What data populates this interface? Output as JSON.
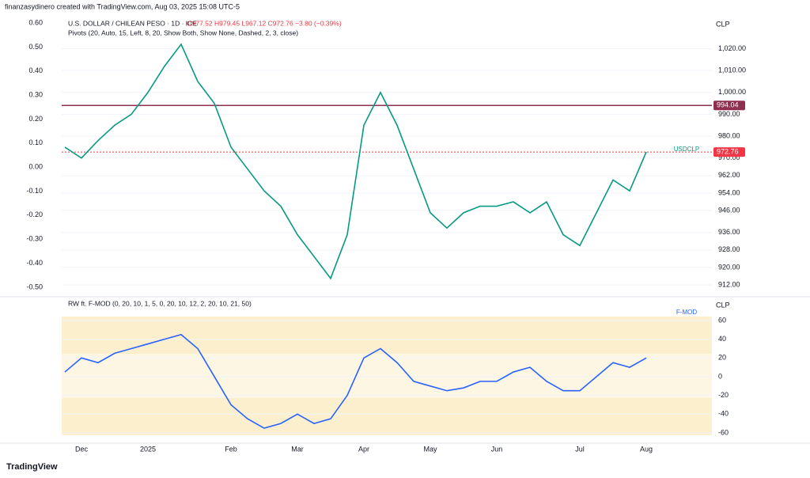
{
  "header": {
    "credit": "finanzasydinero created with TradingView.com, Aug 03, 2025 15:08 UTC-5",
    "footer": "TradingView"
  },
  "chart_data": [
    {
      "type": "line",
      "title": "U.S. DOLLAR / CHILEAN PESO · 1D · ICE",
      "subtitle": "O977.52 H979.45 L967.12 C972.76 −3.80 (−0.39%)",
      "annotation": "Pivots (20, Auto, 15, Left, 8, 20, Show Both, Show None, Dashed, 2, 3, close)",
      "currency": "CLP",
      "categories": [
        null,
        "Dec",
        null,
        null,
        null,
        "2025",
        null,
        null,
        null,
        null,
        "Feb",
        null,
        null,
        null,
        "Mar",
        null,
        null,
        null,
        "Apr",
        null,
        null,
        null,
        "May",
        null,
        null,
        null,
        "Jun",
        null,
        null,
        null,
        null,
        "Jul",
        null,
        null,
        null,
        "Aug"
      ],
      "series": [
        {
          "name": "USDCLP",
          "color": "#089981",
          "values": [
            975,
            970,
            978,
            985,
            990,
            1000,
            1012,
            1022,
            1005,
            995,
            975,
            965,
            955,
            948,
            935,
            925,
            915,
            935,
            985,
            1000,
            985,
            965,
            945,
            938,
            945,
            948,
            948,
            950,
            945,
            950,
            935,
            930,
            945,
            960,
            955,
            972.76
          ]
        }
      ],
      "levels": [
        {
          "value": 994.04,
          "label": "994.04",
          "color": "#8e2f4f"
        },
        {
          "value": 972.76,
          "label": "972.76",
          "color": "#f23645"
        }
      ],
      "ylim": [
        907.7,
        1035
      ],
      "yticks": [
        {
          "value": 1020,
          "label": "1,020.00"
        },
        {
          "value": 1010,
          "label": "1,010.00"
        },
        {
          "value": 1000,
          "label": "1,000.00"
        },
        {
          "value": 990,
          "label": "990.00"
        },
        {
          "value": 980,
          "label": "980.00"
        },
        {
          "value": 970,
          "label": "970.00"
        },
        {
          "value": 962,
          "label": "962.00"
        },
        {
          "value": 954,
          "label": "954.00"
        },
        {
          "value": 946,
          "label": "946.00"
        },
        {
          "value": 936,
          "label": "936.00"
        },
        {
          "value": 928,
          "label": "928.00"
        },
        {
          "value": 920,
          "label": "920.00"
        },
        {
          "value": 912,
          "label": "912.00"
        }
      ],
      "left_ylim": [
        -0.53,
        0.63
      ],
      "left_yticks": [
        {
          "value": 0.6,
          "label": "0.60"
        },
        {
          "value": 0.5,
          "label": "0.50"
        },
        {
          "value": 0.4,
          "label": "0.40"
        },
        {
          "value": 0.3,
          "label": "0.30"
        },
        {
          "value": 0.2,
          "label": "0.20"
        },
        {
          "value": 0.1,
          "label": "0.10"
        },
        {
          "value": 0,
          "label": "0.00"
        },
        {
          "value": -0.1,
          "label": "-0.10"
        },
        {
          "value": -0.2,
          "label": "-0.20"
        },
        {
          "value": -0.3,
          "label": "-0.30"
        },
        {
          "value": -0.4,
          "label": "-0.40"
        },
        {
          "value": -0.5,
          "label": "-0.50"
        }
      ]
    },
    {
      "type": "line",
      "title": "RW ft. F-MOD (0, 20, 10, 1, 5, 0, 20, 10, 12, 2, 20, 10, 21, 50)",
      "currency": "CLP",
      "series": [
        {
          "name": "F-MOD",
          "color": "#2962ff",
          "values": [
            5,
            20,
            15,
            25,
            30,
            35,
            40,
            45,
            30,
            0,
            -30,
            -45,
            -55,
            -50,
            -40,
            -50,
            -45,
            -20,
            20,
            30,
            15,
            -5,
            -10,
            -15,
            -12,
            -5,
            -5,
            5,
            10,
            -5,
            -15,
            -15,
            0,
            15,
            10,
            20
          ]
        }
      ],
      "ylim": [
        -66.8,
        82.8
      ],
      "yticks": [
        60,
        40,
        20,
        0,
        -20,
        -40,
        -60
      ]
    }
  ]
}
